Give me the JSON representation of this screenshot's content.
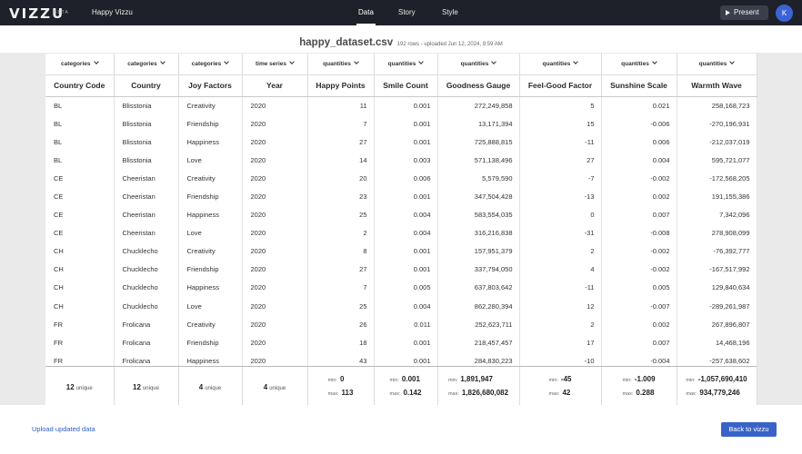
{
  "app": {
    "logo": "VIZZU",
    "beta": "BETA",
    "project_name": "Happy Vizzu"
  },
  "nav": {
    "tabs": [
      "Data",
      "Story",
      "Style"
    ],
    "active": "Data"
  },
  "toolbar": {
    "present_label": "Present",
    "avatar_initial": "K"
  },
  "file": {
    "name": "happy_dataset.csv",
    "meta": "192 rows - uploaded Jun 12, 2024, 9:59 AM"
  },
  "columns": [
    {
      "type": "categories",
      "name": "Country Code"
    },
    {
      "type": "categories",
      "name": "Country"
    },
    {
      "type": "categories",
      "name": "Joy Factors"
    },
    {
      "type": "time series",
      "name": "Year"
    },
    {
      "type": "quantities",
      "name": "Happy Points"
    },
    {
      "type": "quantities",
      "name": "Smile Count"
    },
    {
      "type": "quantities",
      "name": "Goodness Gauge"
    },
    {
      "type": "quantities",
      "name": "Feel-Good Factor"
    },
    {
      "type": "quantities",
      "name": "Sunshine Scale"
    },
    {
      "type": "quantities",
      "name": "Warmth Wave"
    }
  ],
  "rows": [
    [
      "BL",
      "Blisstonia",
      "Creativity",
      "2020",
      "11",
      "0.001",
      "272,249,858",
      "5",
      "0.021",
      "258,168,723"
    ],
    [
      "BL",
      "Blisstonia",
      "Friendship",
      "2020",
      "7",
      "0.001",
      "13,171,394",
      "15",
      "-0.006",
      "-270,196,931"
    ],
    [
      "BL",
      "Blisstonia",
      "Happiness",
      "2020",
      "27",
      "0.001",
      "725,888,815",
      "-11",
      "0.006",
      "-212,037,019"
    ],
    [
      "BL",
      "Blisstonia",
      "Love",
      "2020",
      "14",
      "0.003",
      "571,138,496",
      "27",
      "0.004",
      "595,721,077"
    ],
    [
      "CE",
      "Cheeristan",
      "Creativity",
      "2020",
      "20",
      "0.006",
      "5,579,590",
      "-7",
      "-0.002",
      "-172,568,205"
    ],
    [
      "CE",
      "Cheeristan",
      "Friendship",
      "2020",
      "23",
      "0.001",
      "347,504,428",
      "-13",
      "0.002",
      "191,155,386"
    ],
    [
      "CE",
      "Cheeristan",
      "Happiness",
      "2020",
      "25",
      "0.004",
      "583,554,035",
      "0",
      "0.007",
      "7,342,096"
    ],
    [
      "CE",
      "Cheeristan",
      "Love",
      "2020",
      "2",
      "0.004",
      "316,216,838",
      "-31",
      "-0.008",
      "278,908,099"
    ],
    [
      "CH",
      "Chucklecho",
      "Creativity",
      "2020",
      "8",
      "0.001",
      "157,951,379",
      "2",
      "-0.002",
      "-76,392,777"
    ],
    [
      "CH",
      "Chucklecho",
      "Friendship",
      "2020",
      "27",
      "0.001",
      "337,794,050",
      "4",
      "-0.002",
      "-167,517,992"
    ],
    [
      "CH",
      "Chucklecho",
      "Happiness",
      "2020",
      "7",
      "0.005",
      "637,803,642",
      "-11",
      "0.005",
      "129,840,634"
    ],
    [
      "CH",
      "Chucklecho",
      "Love",
      "2020",
      "25",
      "0.004",
      "862,280,394",
      "12",
      "-0.007",
      "-289,261,987"
    ],
    [
      "FR",
      "Frolicana",
      "Creativity",
      "2020",
      "26",
      "0.011",
      "252,623,711",
      "2",
      "0.002",
      "267,896,807"
    ],
    [
      "FR",
      "Frolicana",
      "Friendship",
      "2020",
      "18",
      "0.001",
      "218,457,457",
      "17",
      "0.007",
      "14,468,196"
    ],
    [
      "FR",
      "Frolicana",
      "Happiness",
      "2020",
      "43",
      "0.001",
      "284,830,223",
      "-10",
      "-0.004",
      "-257,638,602"
    ]
  ],
  "summary": {
    "unique_label": "unique",
    "min_label": "min:",
    "max_label": "max:",
    "cells": [
      {
        "unique": "12"
      },
      {
        "unique": "12"
      },
      {
        "unique": "4"
      },
      {
        "unique": "4"
      },
      {
        "min": "0",
        "max": "113"
      },
      {
        "min": "0.001",
        "max": "0.142"
      },
      {
        "min": "1,891,947",
        "max": "1,826,680,082"
      },
      {
        "min": "-45",
        "max": "42"
      },
      {
        "min": "-1.009",
        "max": "0.288"
      },
      {
        "min": "-1,057,690,410",
        "max": "934,779,246"
      }
    ]
  },
  "footer": {
    "upload_label": "Upload updated data",
    "back_label": "Back to vizzu"
  },
  "colors": {
    "topbar": "#1e2129",
    "accent": "#3a63c9",
    "avatar": "#3b63d6",
    "link": "#2f5fc2"
  }
}
